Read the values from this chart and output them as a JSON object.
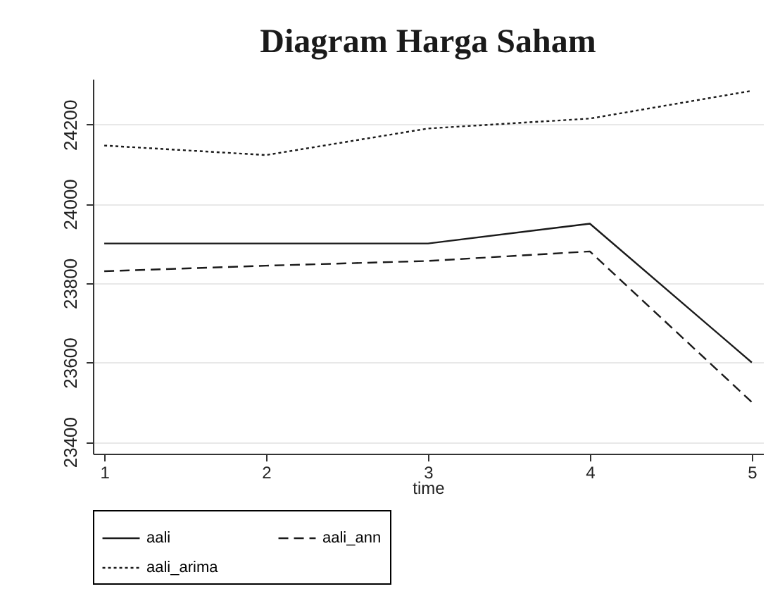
{
  "chart_data": {
    "type": "line",
    "title": "Diagram Harga Saham",
    "xlabel": "time",
    "x": [
      1,
      2,
      3,
      4,
      5
    ],
    "series": [
      {
        "name": "aali",
        "color": "#1a1a1a",
        "line_style": "solid",
        "values": [
          23900,
          23900,
          23900,
          23950,
          23600
        ]
      },
      {
        "name": "aali_ann",
        "color": "#1a1a1a",
        "line_style": "dashed",
        "values": [
          23830,
          23844,
          23856,
          23880,
          23500
        ]
      },
      {
        "name": "aali_arima",
        "color": "#1a1a1a",
        "line_style": "dotted",
        "values": [
          24147,
          24123,
          24190,
          24215,
          24285
        ]
      }
    ],
    "xlim": [
      0.93,
      5.07
    ],
    "xticks": [
      1,
      2,
      3,
      4,
      5
    ],
    "ylim": [
      23370,
      24315
    ],
    "yticks": [
      23400,
      23600,
      23800,
      24000,
      24200
    ],
    "grid": "y",
    "legend": "bottom",
    "marker": "none"
  }
}
